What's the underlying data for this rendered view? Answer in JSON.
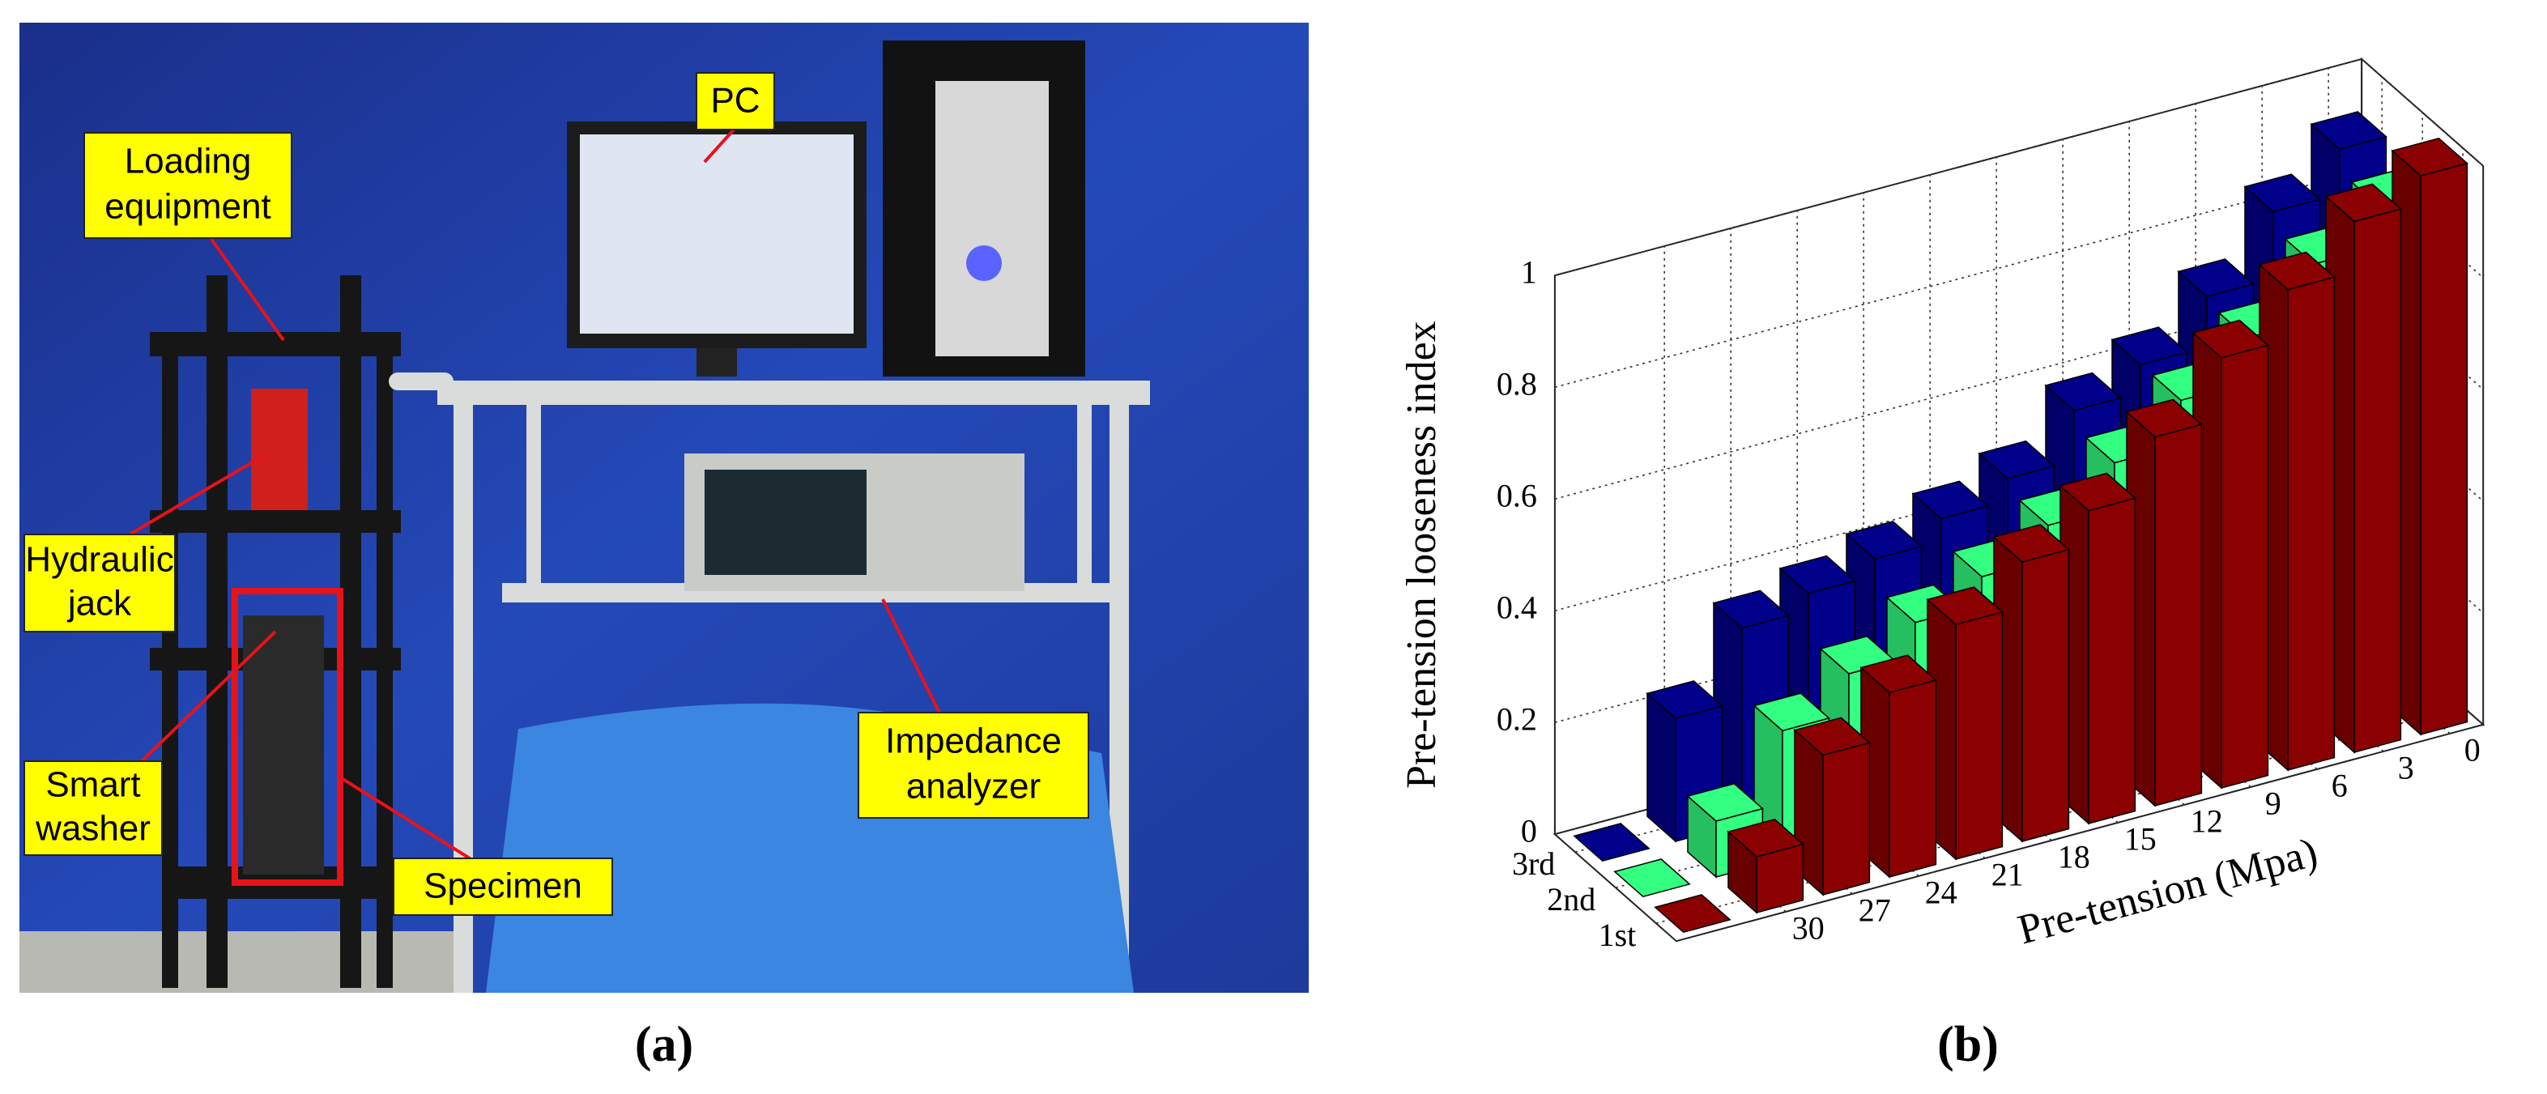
{
  "photo": {
    "labels": [
      {
        "lines": [
          "PC"
        ]
      },
      {
        "lines": [
          "Loading",
          "equipment"
        ]
      },
      {
        "lines": [
          "Hydraulic",
          "jack"
        ]
      },
      {
        "lines": [
          "Smart",
          "washer"
        ]
      },
      {
        "lines": [
          "Specimen"
        ]
      },
      {
        "lines": [
          "Impedance",
          "analyzer"
        ]
      }
    ]
  },
  "captions": {
    "a": "(a)",
    "b": "(b)"
  },
  "chart_data": {
    "type": "bar3d",
    "xlabel": "Pre-tension (Mpa)",
    "zlabel": "Pre-tension looseness index",
    "categories": [
      "30",
      "27",
      "24",
      "21",
      "18",
      "15",
      "12",
      "9",
      "6",
      "3",
      "0"
    ],
    "series": [
      {
        "name": "1st",
        "color": "#8b0000",
        "values": [
          0.1,
          0.25,
          0.33,
          0.42,
          0.5,
          0.56,
          0.66,
          0.77,
          0.86,
          0.95,
          1.0
        ]
      },
      {
        "name": "2nd",
        "color": "#33ff80",
        "values": [
          0.1,
          0.23,
          0.3,
          0.36,
          0.41,
          0.47,
          0.55,
          0.63,
          0.71,
          0.81,
          0.88
        ]
      },
      {
        "name": "3rd",
        "color": "#00008b",
        "values": [
          0.22,
          0.35,
          0.38,
          0.41,
          0.45,
          0.49,
          0.58,
          0.63,
          0.72,
          0.84,
          0.92
        ]
      }
    ],
    "zlim": [
      0,
      1
    ],
    "zticks": [
      0,
      0.2,
      0.4,
      0.6,
      0.8,
      1
    ],
    "grid": true
  }
}
